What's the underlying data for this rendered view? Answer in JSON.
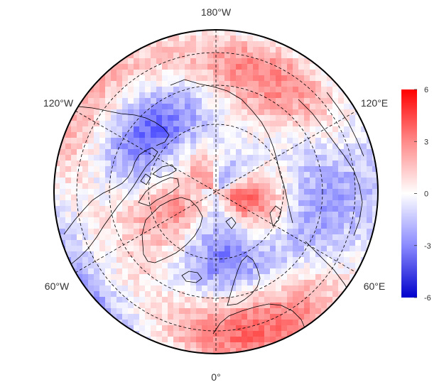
{
  "map": {
    "projection": "north-polar-stereographic",
    "longitude_labels": [
      {
        "id": "lon-180w",
        "text": "180°W"
      },
      {
        "id": "lon-120w",
        "text": "120°W"
      },
      {
        "id": "lon-120e",
        "text": "120°E"
      },
      {
        "id": "lon-60w",
        "text": "60°W"
      },
      {
        "id": "lon-60e",
        "text": "60°E"
      },
      {
        "id": "lon-0",
        "text": "0°"
      }
    ],
    "graticule": {
      "meridian_step_deg": 60,
      "parallel_step_deg": 15,
      "style": "dashed"
    },
    "field": {
      "description_colors": {
        "negative": "#0000ff",
        "zero": "#ffffff",
        "positive": "#ff0000"
      }
    }
  },
  "colorbar": {
    "min": -6,
    "max": 6,
    "ticks": [
      "6",
      "3",
      "0",
      "-3",
      "-6"
    ],
    "colors": {
      "top": "#ff0000",
      "middle": "#ffffff",
      "bottom": "#0000cc"
    }
  }
}
